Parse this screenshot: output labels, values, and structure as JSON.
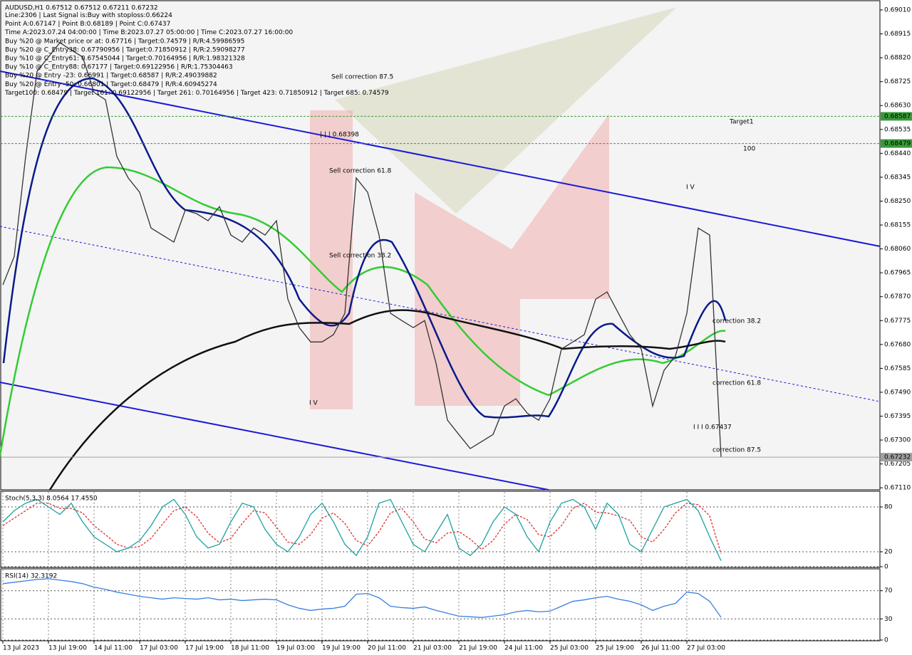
{
  "chart_data": [
    {
      "type": "line",
      "title": "AUDUSD,H1  0.67512 0.67512 0.67211 0.67232",
      "info_lines": [
        "Line:2306 | Last Signal is:Buy with stoploss:0.66224",
        "Point A:0.67147 | Point B:0.68189 | Point C:0.67437",
        "Time A:2023.07.24 04:00:00 | Time B:2023.07.27 05:00:00 | Time C:2023.07.27 16:00:00",
        "Buy %20 @ Market price or at: 0.67716 | Target:0.74579 | R/R:4.59986595",
        "Buy %20 @ C_Entry38: 0.67790956 | Target:0.71850912 | R/R:2.59098277",
        "Buy %10 @ C_Entry61: 0.67545044 | Target:0.70164956 | R/R:1.98321328",
        "Buy %10 @ C_Entry88: 0.67177 | Target:0.69122956 | R/R:1.75304463",
        "Buy %20 @ Entry -23: 0.66991 | Target:0.68587 | R/R:2.49039882",
        "Buy %20 @ Entry -50: 0.66801 | Target:0.68479 | R/R:4.60945274",
        "Target100: 0.68479 | Target 161: 0.69122956 | Target 261: 0.70164956 | Target 423: 0.71850912 | Target 685: 0.74579"
      ],
      "categories": [
        "13 Jul 2023",
        null,
        null,
        null,
        "13 Jul 19:00",
        null,
        null,
        null,
        "14 Jul 11:00",
        null,
        null,
        null,
        "17 Jul 03:00",
        null,
        null,
        null,
        "17 Jul 19:00",
        null,
        null,
        null,
        "18 Jul 11:00",
        null,
        null,
        null,
        "19 Jul 03:00",
        null,
        null,
        null,
        "19 Jul 19:00",
        null,
        null,
        null,
        "20 Jul 11:00",
        null,
        null,
        null,
        "21 Jul 03:00",
        null,
        null,
        null,
        "21 Jul 19:00",
        null,
        null,
        null,
        "24 Jul 11:00",
        null,
        null,
        null,
        "25 Jul 03:00",
        null,
        null,
        null,
        "25 Jul 19:00",
        null,
        null,
        null,
        "26 Jul 11:00",
        null,
        null,
        null,
        "27 Jul 03:00",
        null,
        null,
        null
      ],
      "values": [
        0.67917,
        0.6803,
        0.68427,
        0.68766,
        0.68823,
        0.6888,
        0.68851,
        0.68823,
        0.68682,
        0.68653,
        0.68427,
        0.68342,
        0.68285,
        0.68143,
        0.68115,
        0.68087,
        0.68214,
        0.682,
        0.68172,
        0.68228,
        0.68115,
        0.68087,
        0.68143,
        0.68115,
        0.68172,
        0.6786,
        0.67747,
        0.6769,
        0.6769,
        0.67719,
        0.67804,
        0.68342,
        0.68285,
        0.68115,
        0.67804,
        0.67775,
        0.67747,
        0.67775,
        0.67605,
        0.67379,
        0.67322,
        0.67266,
        0.67294,
        0.67322,
        0.67435,
        0.67464,
        0.67407,
        0.67379,
        0.67464,
        0.67662,
        0.6769,
        0.67719,
        0.6786,
        0.67889,
        0.67804,
        0.67719,
        0.67662,
        0.67435,
        0.67577,
        0.67634,
        0.67804,
        0.68143,
        0.68115,
        0.67232
      ],
      "color": "#333333",
      "ylim": [
        0.67102,
        0.69044
      ],
      "yticks": [
        {
          "value": 0.6901,
          "label": "0.69010"
        },
        0.68915,
        {
          "value": 0.6882,
          "label": "0.68820"
        },
        0.68725,
        {
          "value": 0.6863,
          "label": "0.68630"
        },
        0.68535,
        {
          "value": 0.6844,
          "label": "0.68440"
        },
        0.68345,
        {
          "value": 0.6825,
          "label": "0.68250"
        },
        0.68155,
        {
          "value": 0.6806,
          "label": "0.68060"
        },
        0.67965,
        {
          "value": 0.6787,
          "label": "0.67870"
        },
        0.67775,
        {
          "value": 0.6768,
          "label": "0.67680"
        },
        0.67585,
        {
          "value": 0.6749,
          "label": "0.67490"
        },
        0.67395,
        {
          "value": 0.673,
          "label": "0.67300"
        },
        0.67205,
        {
          "value": 0.6711,
          "label": "0.67110"
        }
      ],
      "levels": [
        {
          "value": 0.68587,
          "color": "#3a9a3a"
        },
        {
          "value": 0.68479,
          "color": "#3a9a3a"
        },
        {
          "value": 0.67232,
          "color": "#a0a0a0"
        }
      ],
      "annotations": [
        "Sell correction 87.5",
        "| | | 0.68398",
        "Sell correction 61.8",
        "Sell correction 38.2",
        "I V",
        "Target1",
        "100",
        "I V",
        "correction 38.2",
        "correction 61.8",
        "I I I 0.67437",
        "correction 87.5"
      ]
    },
    {
      "type": "line",
      "title": "Stoch(5,3,3) 8.0564 17.4550",
      "values": [
        60,
        75,
        85,
        90,
        80,
        70,
        85,
        60,
        40,
        30,
        20,
        25,
        35,
        55,
        80,
        90,
        70,
        40,
        25,
        30,
        60,
        85,
        80,
        50,
        30,
        20,
        40,
        70,
        85,
        60,
        30,
        15,
        40,
        85,
        90,
        60,
        30,
        20,
        45,
        70,
        25,
        15,
        30,
        60,
        80,
        70,
        40,
        20,
        60,
        85,
        90,
        80,
        50,
        85,
        70,
        30,
        20,
        50,
        80,
        85,
        90,
        75,
        40,
        8.0564
      ],
      "color": "#20a0a0",
      "signal_values": [
        55,
        65,
        75,
        85,
        85,
        78,
        78,
        72,
        55,
        43,
        30,
        25,
        27,
        38,
        57,
        75,
        80,
        67,
        45,
        32,
        38,
        58,
        75,
        72,
        53,
        33,
        30,
        43,
        65,
        72,
        58,
        35,
        28,
        47,
        72,
        78,
        60,
        37,
        32,
        45,
        47,
        37,
        23,
        35,
        57,
        70,
        63,
        43,
        40,
        55,
        78,
        85,
        73,
        72,
        68,
        62,
        40,
        33,
        50,
        72,
        85,
        83,
        68,
        17.455
      ],
      "signal_color": "#e03030",
      "ylim": [
        0,
        100
      ],
      "yticks": [
        0,
        20,
        80
      ]
    },
    {
      "type": "line",
      "title": "RSI(14) 32.3192",
      "values": [
        80,
        82,
        84,
        86,
        87,
        85,
        83,
        80,
        75,
        72,
        68,
        65,
        62,
        60,
        58,
        60,
        59,
        58,
        60,
        57,
        58,
        56,
        57,
        58,
        57,
        50,
        45,
        42,
        44,
        45,
        48,
        65,
        66,
        60,
        48,
        46,
        45,
        47,
        42,
        38,
        34,
        33,
        32,
        34,
        36,
        40,
        42,
        40,
        41,
        48,
        55,
        57,
        60,
        62,
        58,
        55,
        50,
        42,
        48,
        52,
        68,
        66,
        55,
        32.3192
      ],
      "color": "#3a7fe0",
      "ylim": [
        0,
        100
      ],
      "yticks": [
        0,
        30,
        70
      ]
    }
  ]
}
